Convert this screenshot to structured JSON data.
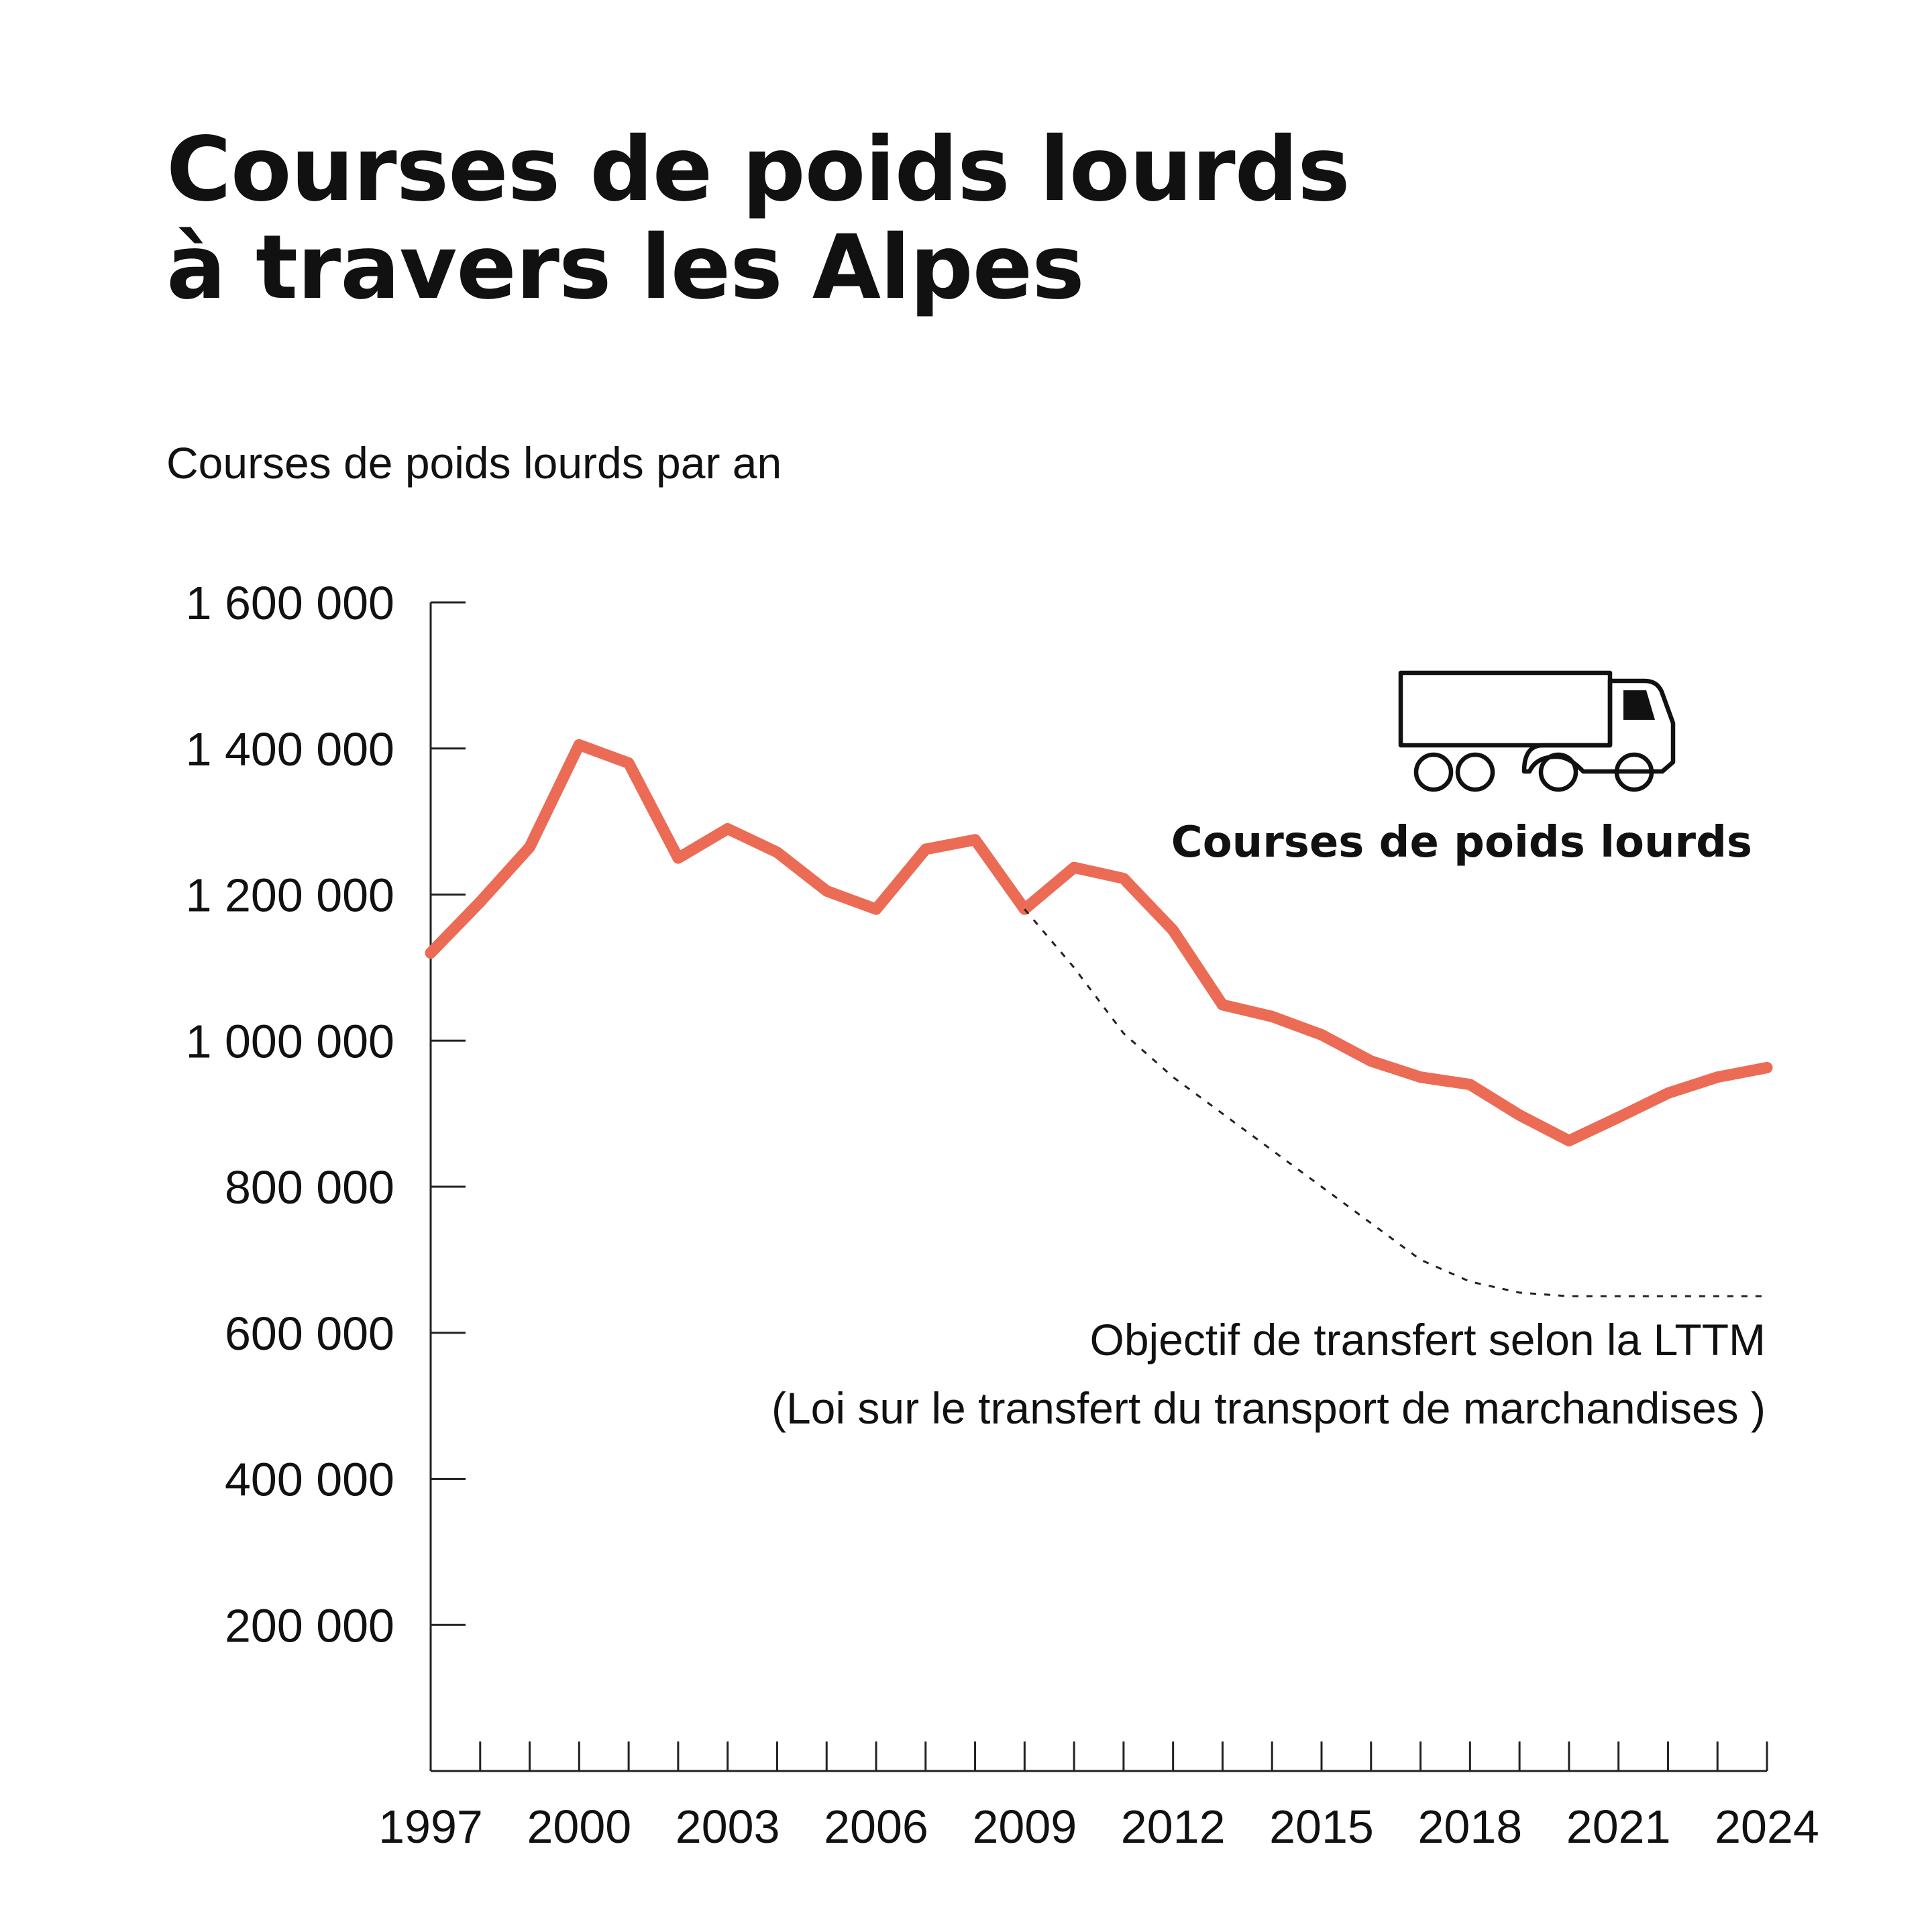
{
  "title_lines": [
    "Courses de poids lourds",
    "à travers les Alpes"
  ],
  "subtitle": "Courses de poids lourds par an",
  "colors": {
    "series": "#ec6b55",
    "axis": "#222222",
    "text": "#111111",
    "target": "#222222"
  },
  "chart_data": {
    "type": "line",
    "title": "Courses de poids lourds à travers les Alpes",
    "ylabel": "Courses de poids lourds par an",
    "xlabel": "",
    "xlim": [
      1997,
      2024
    ],
    "ylim": [
      0,
      1600000
    ],
    "grid": false,
    "x_ticks": [
      1997,
      2000,
      2003,
      2006,
      2009,
      2012,
      2015,
      2018,
      2021,
      2024
    ],
    "x_tick_labels": [
      "1997",
      "2000",
      "2003",
      "2006",
      "2009",
      "2012",
      "2015",
      "2018",
      "2021",
      "2024"
    ],
    "y_ticks": [
      200000,
      400000,
      600000,
      800000,
      1000000,
      1200000,
      1400000,
      1600000
    ],
    "y_tick_labels": [
      "200 000",
      "400 000",
      "600 000",
      "800 000",
      "1 000 000",
      "1 200 000",
      "1 400 000",
      "1 600 000"
    ],
    "series": [
      {
        "name": "Courses de poids lourds",
        "style": "solid",
        "x": [
          1997,
          1998,
          1999,
          2000,
          2001,
          2002,
          2003,
          2004,
          2005,
          2006,
          2007,
          2008,
          2009,
          2010,
          2011,
          2012,
          2013,
          2014,
          2015,
          2016,
          2017,
          2018,
          2019,
          2020,
          2021,
          2022,
          2023,
          2024
        ],
        "values": [
          1120000,
          1190000,
          1265000,
          1405000,
          1380000,
          1250000,
          1290000,
          1258000,
          1205000,
          1180000,
          1262000,
          1275000,
          1180000,
          1237000,
          1222000,
          1151000,
          1049000,
          1033000,
          1008000,
          972000,
          950000,
          940000,
          898000,
          863000,
          895000,
          928000,
          950000,
          963000
        ]
      },
      {
        "name": "Objectif de transfert selon la LTTM (Loi sur le transfert du transport de marchandises )",
        "style": "dotted",
        "x": [
          2009,
          2010,
          2011,
          2012,
          2013,
          2014,
          2015,
          2016,
          2017,
          2018,
          2019,
          2020,
          2021,
          2022,
          2023,
          2024
        ],
        "values": [
          1180000,
          1100000,
          1010000,
          950000,
          900000,
          850000,
          800000,
          750000,
          700000,
          670000,
          655000,
          650000,
          650000,
          650000,
          650000,
          650000
        ]
      }
    ],
    "annotations": {
      "series_label": "Courses de poids lourds",
      "target_label_line1": "Objectif de transfert selon la LTTM",
      "target_label_line2": "(Loi sur le transfert du transport de marchandises )",
      "icon": "truck-icon"
    }
  }
}
